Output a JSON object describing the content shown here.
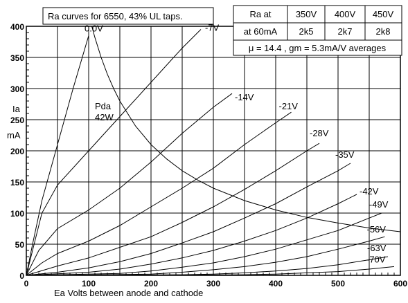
{
  "chart_data": {
    "type": "line",
    "title": "Ra curves for 6550, 43% UL taps.",
    "xlabel": "Ea Volts between anode and cathode",
    "ylabel_line1": "Ia",
    "ylabel_line2": "mA",
    "xlim": [
      0,
      600
    ],
    "ylim": [
      0,
      400
    ],
    "xticks": [
      0,
      100,
      200,
      300,
      400,
      500,
      600
    ],
    "yticks": [
      0,
      50,
      100,
      150,
      200,
      250,
      300,
      350,
      400
    ],
    "grid": true,
    "series": [
      {
        "name": "0.0V",
        "points": [
          [
            0,
            0
          ],
          [
            10,
            50
          ],
          [
            25,
            120
          ],
          [
            50,
            210
          ],
          [
            75,
            300
          ],
          [
            100,
            385
          ]
        ]
      },
      {
        "name": "-7V",
        "points": [
          [
            0,
            0
          ],
          [
            10,
            40
          ],
          [
            25,
            100
          ],
          [
            50,
            145
          ],
          [
            100,
            200
          ],
          [
            150,
            255
          ],
          [
            200,
            310
          ],
          [
            250,
            365
          ],
          [
            280,
            395
          ]
        ]
      },
      {
        "name": "-14V",
        "points": [
          [
            0,
            0
          ],
          [
            20,
            40
          ],
          [
            50,
            75
          ],
          [
            100,
            105
          ],
          [
            150,
            140
          ],
          [
            200,
            182
          ],
          [
            250,
            228
          ],
          [
            300,
            270
          ],
          [
            330,
            292
          ]
        ]
      },
      {
        "name": "-21V",
        "points": [
          [
            0,
            0
          ],
          [
            25,
            20
          ],
          [
            50,
            35
          ],
          [
            100,
            55
          ],
          [
            150,
            80
          ],
          [
            200,
            110
          ],
          [
            250,
            140
          ],
          [
            300,
            172
          ],
          [
            350,
            210
          ],
          [
            400,
            245
          ],
          [
            425,
            262
          ]
        ]
      },
      {
        "name": "-28V",
        "points": [
          [
            0,
            0
          ],
          [
            50,
            15
          ],
          [
            100,
            28
          ],
          [
            150,
            45
          ],
          [
            200,
            62
          ],
          [
            250,
            85
          ],
          [
            300,
            110
          ],
          [
            350,
            138
          ],
          [
            400,
            168
          ],
          [
            450,
            200
          ],
          [
            470,
            212
          ]
        ]
      },
      {
        "name": "-35V",
        "points": [
          [
            0,
            0
          ],
          [
            50,
            5
          ],
          [
            100,
            12
          ],
          [
            150,
            22
          ],
          [
            200,
            35
          ],
          [
            250,
            52
          ],
          [
            300,
            70
          ],
          [
            350,
            92
          ],
          [
            400,
            115
          ],
          [
            450,
            142
          ],
          [
            500,
            168
          ],
          [
            520,
            180
          ]
        ]
      },
      {
        "name": "-42V",
        "points": [
          [
            0,
            0
          ],
          [
            100,
            5
          ],
          [
            150,
            10
          ],
          [
            200,
            18
          ],
          [
            250,
            28
          ],
          [
            300,
            40
          ],
          [
            350,
            55
          ],
          [
            400,
            72
          ],
          [
            450,
            92
          ],
          [
            500,
            115
          ],
          [
            530,
            130
          ]
        ]
      },
      {
        "name": "-49V",
        "points": [
          [
            0,
            0
          ],
          [
            150,
            3
          ],
          [
            200,
            7
          ],
          [
            250,
            13
          ],
          [
            300,
            20
          ],
          [
            350,
            30
          ],
          [
            400,
            42
          ],
          [
            450,
            57
          ],
          [
            500,
            72
          ],
          [
            550,
            92
          ],
          [
            570,
            100
          ]
        ]
      },
      {
        "name": "-56V",
        "points": [
          [
            50,
            0
          ],
          [
            200,
            2
          ],
          [
            250,
            5
          ],
          [
            300,
            9
          ],
          [
            350,
            14
          ],
          [
            400,
            21
          ],
          [
            450,
            30
          ],
          [
            500,
            42
          ],
          [
            550,
            55
          ],
          [
            575,
            62
          ]
        ]
      },
      {
        "name": "-63V",
        "points": [
          [
            100,
            0
          ],
          [
            250,
            1
          ],
          [
            300,
            2
          ],
          [
            350,
            4
          ],
          [
            400,
            7
          ],
          [
            450,
            11
          ],
          [
            500,
            17
          ],
          [
            550,
            25
          ],
          [
            580,
            30
          ]
        ]
      },
      {
        "name": "-70V",
        "points": [
          [
            200,
            0
          ],
          [
            350,
            1
          ],
          [
            400,
            2
          ],
          [
            450,
            4
          ],
          [
            500,
            6
          ],
          [
            550,
            10
          ],
          [
            590,
            14
          ]
        ]
      }
    ],
    "pda_curve": {
      "label_line1": "Pda",
      "label_line2": "42W",
      "points": [
        [
          105,
          400
        ],
        [
          110,
          382
        ],
        [
          120,
          350
        ],
        [
          130,
          323
        ],
        [
          140,
          300
        ],
        [
          150,
          280
        ],
        [
          175,
          240
        ],
        [
          200,
          210
        ],
        [
          225,
          187
        ],
        [
          250,
          168
        ],
        [
          275,
          153
        ],
        [
          300,
          140
        ],
        [
          350,
          120
        ],
        [
          400,
          105
        ],
        [
          450,
          93
        ],
        [
          500,
          84
        ],
        [
          550,
          76
        ],
        [
          600,
          70
        ]
      ]
    },
    "ra_table": {
      "headers": [
        "Ra at",
        "350V",
        "400V",
        "450V"
      ],
      "row": [
        "at 60mA",
        "2k5",
        "2k7",
        "2k8"
      ]
    },
    "averages": "μ = 14.4 ,  gm = 5.3mA/V averages"
  }
}
